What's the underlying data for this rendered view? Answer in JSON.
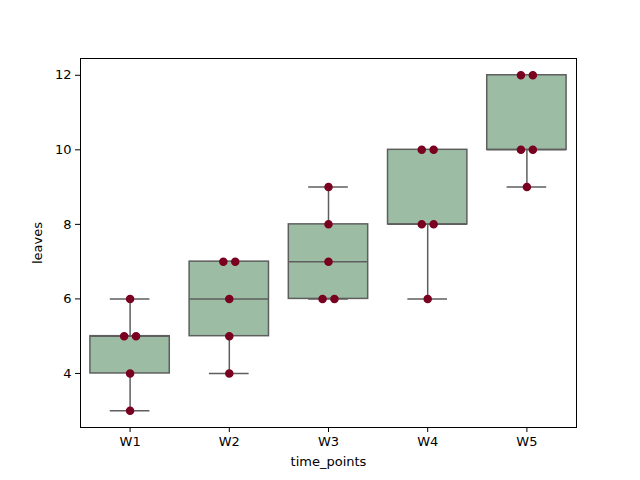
{
  "chart_data": {
    "type": "box",
    "x_label": "time_points",
    "y_label": "leaves",
    "categories": [
      "W1",
      "W2",
      "W3",
      "W4",
      "W5"
    ],
    "values": [
      [
        3,
        4,
        5,
        5,
        6
      ],
      [
        4,
        5,
        6,
        7,
        7
      ],
      [
        6,
        6,
        7,
        8,
        9
      ],
      [
        6,
        8,
        8,
        10,
        10
      ],
      [
        9,
        10,
        10,
        12,
        12
      ]
    ],
    "color": "#9cbda4",
    "marker": "circle",
    "ylim": [
      2.55,
      12.45
    ],
    "yticks": [
      4,
      6,
      8,
      10,
      12
    ],
    "grid": false
  }
}
